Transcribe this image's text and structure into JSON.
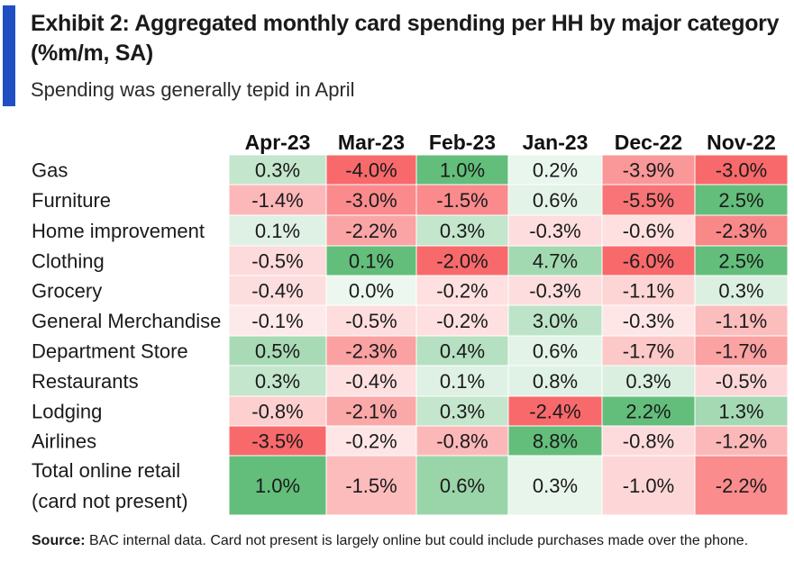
{
  "title": "Exhibit 2: Aggregated monthly card spending per HH by major category (%m/m, SA)",
  "subtitle": "Spending was generally tepid in April",
  "accent_color": "#1f4fc2",
  "source_label": "Source:",
  "source_text": " BAC internal data. Card not present is largely online but could include purchases made over the phone.",
  "chart_data": {
    "type": "heatmap",
    "columns": [
      "Apr-23",
      "Mar-23",
      "Feb-23",
      "Jan-23",
      "Dec-22",
      "Nov-22"
    ],
    "rows": [
      {
        "label": [
          "Gas"
        ],
        "values": [
          0.3,
          -4.0,
          1.0,
          0.2,
          -3.9,
          -3.0
        ]
      },
      {
        "label": [
          "Furniture"
        ],
        "values": [
          -1.4,
          -3.0,
          -1.5,
          0.6,
          -5.5,
          2.5
        ]
      },
      {
        "label": [
          "Home improvement"
        ],
        "values": [
          0.1,
          -2.2,
          0.3,
          -0.3,
          -0.6,
          -2.3
        ]
      },
      {
        "label": [
          "Clothing"
        ],
        "values": [
          -0.5,
          0.1,
          -2.0,
          4.7,
          -6.0,
          2.5
        ]
      },
      {
        "label": [
          "Grocery"
        ],
        "values": [
          -0.4,
          0.0,
          -0.2,
          -0.3,
          -1.1,
          0.3
        ]
      },
      {
        "label": [
          "General Merchandise"
        ],
        "values": [
          -0.1,
          -0.5,
          -0.2,
          3.0,
          -0.3,
          -1.1
        ]
      },
      {
        "label": [
          "Department Store"
        ],
        "values": [
          0.5,
          -2.3,
          0.4,
          0.6,
          -1.7,
          -1.7
        ]
      },
      {
        "label": [
          "Restaurants"
        ],
        "values": [
          0.3,
          -0.4,
          0.1,
          0.8,
          0.3,
          -0.5
        ]
      },
      {
        "label": [
          "Lodging"
        ],
        "values": [
          -0.8,
          -2.1,
          0.3,
          -2.4,
          2.2,
          1.3
        ]
      },
      {
        "label": [
          "Airlines"
        ],
        "values": [
          -3.5,
          -0.2,
          -0.8,
          8.8,
          -0.8,
          -1.2
        ]
      },
      {
        "label": [
          "Total online retail",
          "(card not present)"
        ],
        "values": [
          1.0,
          -1.5,
          0.6,
          0.3,
          -1.0,
          -2.2
        ]
      }
    ],
    "value_format": "percent_1dp",
    "color_scale": {
      "negative": "#f8696b",
      "mid": "#ffffff",
      "positive": "#63be7b"
    }
  }
}
